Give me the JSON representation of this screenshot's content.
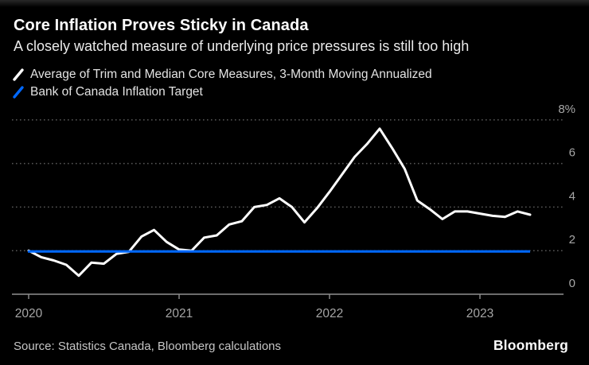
{
  "footer": {
    "source": "Source: Statistics Canada, Bloomberg calculations",
    "logo": "Bloomberg"
  },
  "colors": {
    "background": "#000000",
    "series_white": "#ffffff",
    "target_blue": "#0068ff",
    "gridline": "#585858",
    "axis_line": "#8f8f8f",
    "axis_label": "#a6a6a6"
  },
  "chart_data": {
    "type": "line",
    "title": "Core Inflation Proves Sticky in Canada",
    "subtitle": "A closely watched measure of underlying price pressures is still too high",
    "xlabel": "",
    "ylabel": "",
    "x_start": "2020-01",
    "x_interval": "month",
    "x_ticks_months": [
      0,
      12,
      24,
      36
    ],
    "x_tick_labels": [
      "2020",
      "2021",
      "2022",
      "2023"
    ],
    "y_ticks": [
      0,
      2,
      4,
      6,
      8
    ],
    "y_tick_labels": [
      "0",
      "2",
      "4",
      "6",
      "8%"
    ],
    "ylim": [
      0,
      8.8
    ],
    "grid": "horizontal-dotted",
    "legend_position": "top-left",
    "series": [
      {
        "name": "Average of Trim and Median Core Measures, 3-Month Moving Annualized",
        "color": "#ffffff",
        "type": "line",
        "values": [
          2.0,
          1.7,
          1.55,
          1.35,
          0.85,
          1.45,
          1.4,
          1.85,
          1.95,
          2.65,
          2.95,
          2.4,
          2.05,
          2.0,
          2.6,
          2.7,
          3.2,
          3.35,
          4.0,
          4.1,
          4.4,
          4.0,
          3.3,
          3.95,
          4.7,
          5.5,
          6.3,
          6.9,
          7.6,
          6.7,
          5.75,
          4.3,
          3.9,
          3.45,
          3.8,
          3.8,
          3.7,
          3.6,
          3.55,
          3.8,
          3.65
        ]
      },
      {
        "name": "Bank of Canada Inflation Target",
        "color": "#0068ff",
        "type": "hline",
        "value": 2,
        "span_months": [
          0,
          40
        ]
      }
    ]
  }
}
